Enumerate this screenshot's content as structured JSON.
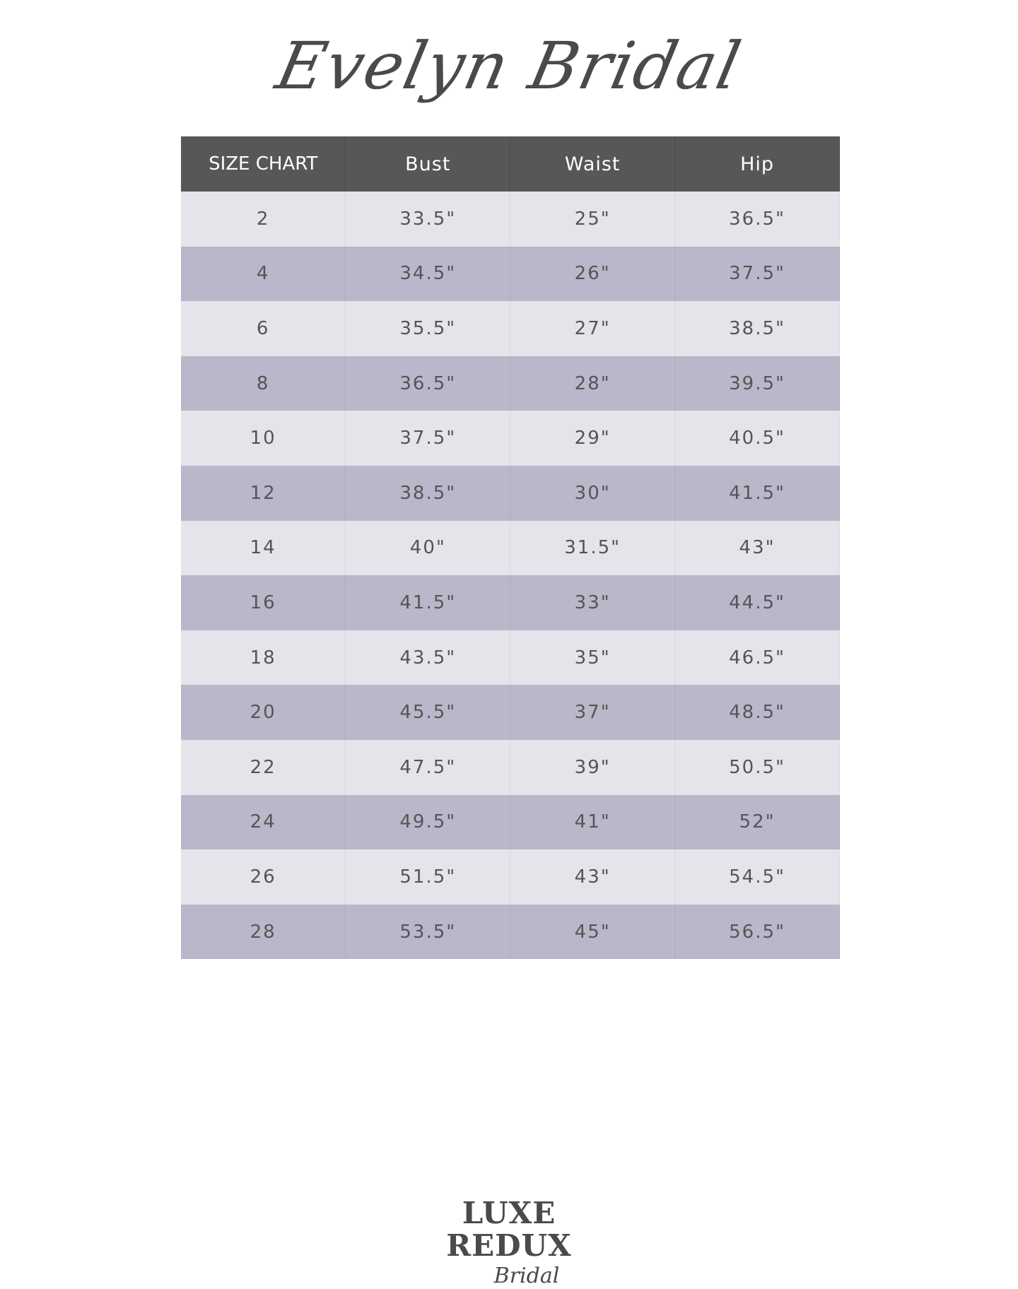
{
  "brand_title": "Evelyn Bridal",
  "table": {
    "headers": [
      "SIZE CHART",
      "Bust",
      "Waist",
      "Hip"
    ],
    "rows": [
      [
        "2",
        "33.5\"",
        "25\"",
        "36.5\""
      ],
      [
        "4",
        "34.5\"",
        "26\"",
        "37.5\""
      ],
      [
        "6",
        "35.5\"",
        "27\"",
        "38.5\""
      ],
      [
        "8",
        "36.5\"",
        "28\"",
        "39.5\""
      ],
      [
        "10",
        "37.5\"",
        "29\"",
        "40.5\""
      ],
      [
        "12",
        "38.5\"",
        "30\"",
        "41.5\""
      ],
      [
        "14",
        "40\"",
        "31.5\"",
        "43\""
      ],
      [
        "16",
        "41.5\"",
        "33\"",
        "44.5\""
      ],
      [
        "18",
        "43.5\"",
        "35\"",
        "46.5\""
      ],
      [
        "20",
        "45.5\"",
        "37\"",
        "48.5\""
      ],
      [
        "22",
        "47.5\"",
        "39\"",
        "50.5\""
      ],
      [
        "24",
        "49.5\"",
        "41\"",
        "52\""
      ],
      [
        "26",
        "51.5\"",
        "43\"",
        "54.5\""
      ],
      [
        "28",
        "53.5\"",
        "45\"",
        "56.5\""
      ]
    ]
  },
  "logo": {
    "main": "LUXE REDUX",
    "sub": "Bridal"
  },
  "colors": {
    "header": "#575757",
    "row_light": "#e5e4ea",
    "row_dark": "#b9b8ca",
    "text": "#555555"
  }
}
